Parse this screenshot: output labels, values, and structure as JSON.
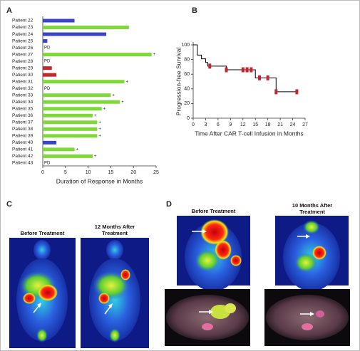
{
  "panel_labels": [
    "A",
    "B",
    "C",
    "D"
  ],
  "captions": [
    "Before Treatment",
    "12 Months After Treatment",
    "Before Treatment",
    "10 Months After Treatment"
  ],
  "chart_data": [
    {
      "type": "bar",
      "orientation": "horizontal",
      "categories": [
        "Patient 22",
        "Patient 23",
        "Patient 24",
        "Patient 25",
        "Patient 26",
        "Patient 27",
        "Patient 28",
        "Patient 29",
        "Patient 30",
        "Patient 31",
        "Patient 32",
        "Patient 33",
        "Patient 34",
        "Patient 35",
        "Patient 36",
        "Patient 37",
        "Patient 38",
        "Patient 39",
        "Patient 40",
        "Patient 41",
        "Patient 42",
        "Patient 43"
      ],
      "values": [
        7,
        19,
        14,
        1,
        null,
        24,
        null,
        2,
        3,
        18,
        null,
        15,
        17,
        13,
        11,
        12,
        12,
        12,
        3,
        7,
        11,
        null
      ],
      "colors": [
        "#3a44c6",
        "#7ed83a",
        "#3a44c6",
        "#3a44c6",
        null,
        "#7ed83a",
        null,
        "#c5262b",
        "#c5262b",
        "#7ed83a",
        null,
        "#7ed83a",
        "#7ed83a",
        "#7ed83a",
        "#7ed83a",
        "#7ed83a",
        "#7ed83a",
        "#7ed83a",
        "#3a44c6",
        "#7ed83a",
        "#7ed83a",
        null
      ],
      "annotations": [
        null,
        null,
        null,
        null,
        "PD",
        "+",
        "PD",
        null,
        null,
        "+",
        "PD",
        "+",
        "+",
        "+",
        "+",
        "+",
        "+",
        "+",
        null,
        "+",
        "+",
        "PD"
      ],
      "xlabel": "Duration of Response in Months",
      "xlim": [
        0,
        25
      ],
      "xticks": [
        0,
        5,
        10,
        15,
        20,
        25
      ]
    },
    {
      "type": "step",
      "x": [
        0,
        1,
        2,
        3,
        3.5,
        8,
        15,
        20,
        25
      ],
      "y": [
        100,
        86,
        81,
        76,
        71,
        66,
        55,
        36,
        36
      ],
      "color": "#000000",
      "censored": {
        "x": [
          4,
          8,
          12,
          13,
          14,
          16,
          18,
          20,
          25
        ],
        "y": [
          71,
          66,
          66,
          66,
          66,
          55,
          55,
          36,
          36
        ],
        "color": "#c5262b"
      },
      "xlabel": "Time After CAR T-cell Infusion in Months",
      "ylabel": "Progression-free Survival",
      "xlim": [
        0,
        27
      ],
      "xticks": [
        0,
        3,
        6,
        9,
        12,
        15,
        18,
        21,
        24,
        27
      ],
      "ylim": [
        0,
        100
      ],
      "yticks": [
        0,
        20,
        40,
        60,
        80,
        100
      ]
    }
  ]
}
